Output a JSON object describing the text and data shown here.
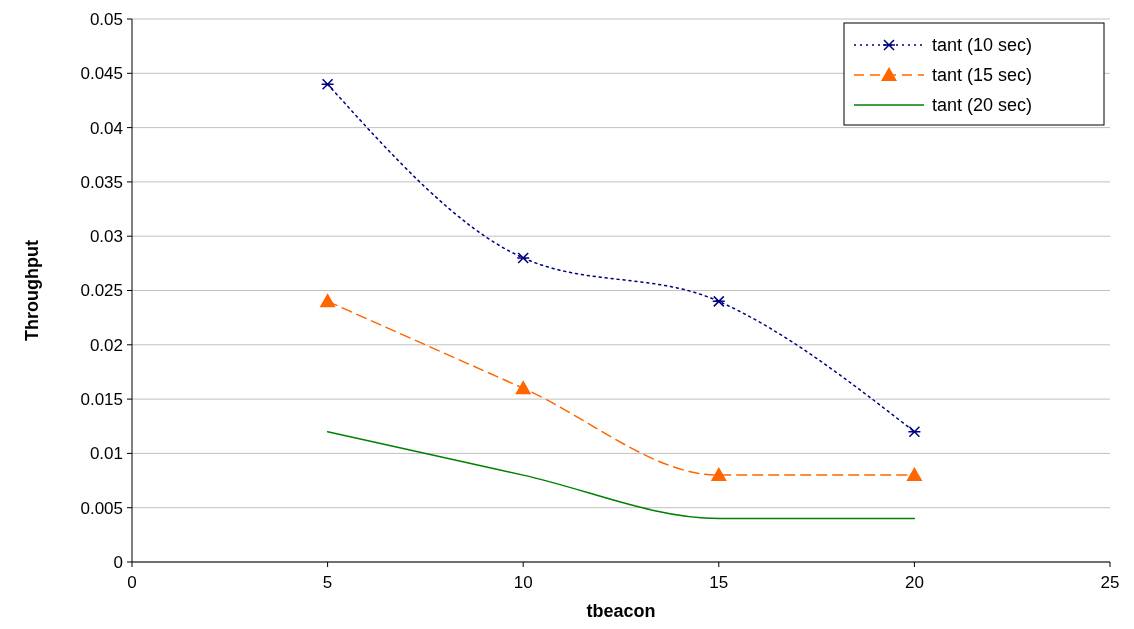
{
  "chart_data": {
    "type": "line",
    "xlabel": "tbeacon",
    "ylabel": "Throughput",
    "x": [
      5,
      10,
      15,
      20
    ],
    "series": [
      {
        "name": "tant (10 sec)",
        "color": "#000080",
        "values": [
          0.044,
          0.028,
          0.024,
          0.012
        ],
        "marker": "cross",
        "line_style": "dotted"
      },
      {
        "name": "tant (15 sec)",
        "color": "#ff6600",
        "values": [
          0.024,
          0.016,
          0.008,
          0.008
        ],
        "marker": "triangle",
        "line_style": "dashed"
      },
      {
        "name": "tant (20 sec)",
        "color": "#008000",
        "values": [
          0.012,
          0.008,
          0.004,
          0.004
        ],
        "marker": "none",
        "line_style": "solid"
      }
    ],
    "xlim": [
      0,
      25
    ],
    "xticks": [
      0,
      5,
      10,
      15,
      20,
      25
    ],
    "ylim": [
      0,
      0.05
    ],
    "yticks": [
      0,
      0.005,
      0.01,
      0.015,
      0.02,
      0.025,
      0.03,
      0.035,
      0.04,
      0.045,
      0.05
    ],
    "grid": "y",
    "legend": "top right"
  }
}
